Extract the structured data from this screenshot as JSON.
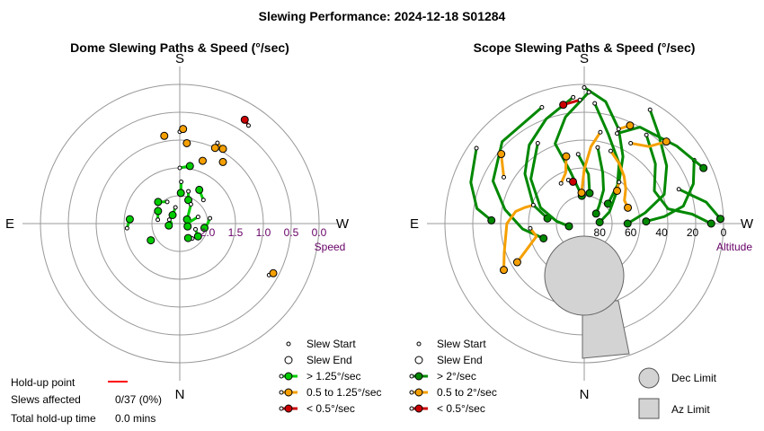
{
  "title": "Slewing Performance: 2024-12-18 S01284",
  "chart_data": [
    {
      "type": "polar",
      "title": "Dome Slewing Paths & Speed (°/sec)",
      "compass": {
        "top": "S",
        "bottom": "N",
        "left": "E",
        "right": "W"
      },
      "radial_label": "Speed",
      "radial_ticks": [
        "2.0",
        "1.5",
        "1.0",
        "0.5",
        "0.0"
      ],
      "radial_tick_values": [
        2.0,
        1.5,
        1.0,
        0.5,
        0.0
      ],
      "radial_range": [
        2.5,
        0.0
      ],
      "series": [
        {
          "name": "> 1.25°/sec",
          "color": "#00cc00",
          "paths": [
            [
              [
                180,
                1.5
              ],
              [
                170,
                1.45
              ]
            ],
            [
              [
                178,
                1.75
              ],
              [
                178,
                1.95
              ]
            ],
            [
              [
                165,
                1.9
              ],
              [
                160,
                2.05
              ]
            ],
            [
              [
                210,
                2.05
              ],
              [
                225,
                1.95
              ]
            ],
            [
              [
                195,
                2.2
              ],
              [
                220,
                2.3
              ]
            ],
            [
              [
                150,
                2.1
              ],
              [
                140,
                2.25
              ],
              [
                120,
                2.35
              ]
            ],
            [
              [
                110,
                2.15
              ],
              [
                95,
                2.35
              ],
              [
                80,
                2.4
              ],
              [
                70,
                2.35
              ]
            ],
            [
              [
                100,
                1.95
              ],
              [
                90,
                2.0
              ],
              [
                80,
                2.05
              ]
            ],
            [
              [
                260,
                2.1
              ],
              [
                240,
                2.05
              ]
            ],
            [
              [
                275,
                1.55
              ],
              [
                265,
                1.6
              ]
            ],
            [
              [
                300,
                1.9
              ]
            ],
            [
              [
                70,
                2.2
              ],
              [
                55,
                2.1
              ]
            ],
            [
              [
                40,
                2.15
              ],
              [
                30,
                2.2
              ]
            ],
            [
              [
                250,
                2.3
              ],
              [
                265,
                2.35
              ],
              [
                280,
                2.3
              ]
            ],
            [
              [
                135,
                1.9
              ],
              [
                150,
                1.8
              ]
            ]
          ]
        },
        {
          "name": "0.5 to 1.25°/sec",
          "color": "#f5a000",
          "paths": [
            [
              [
                180,
                0.85
              ],
              [
                178,
                0.8
              ]
            ],
            [
              [
                175,
                1.05
              ]
            ],
            [
              [
                160,
                1.3
              ]
            ],
            [
              [
                155,
                0.9
              ],
              [
                150,
                0.95
              ]
            ],
            [
              [
                145,
                1.15
              ]
            ],
            [
              [
                155,
                1.0
              ]
            ],
            [
              [
                60,
                0.65
              ],
              [
                62,
                0.6
              ]
            ],
            [
              [
                190,
                0.9
              ]
            ]
          ]
        },
        {
          "name": "< 0.5°/sec",
          "color": "#cc0000",
          "paths": [
            [
              [
                145,
                0.35
              ],
              [
                148,
                0.3
              ]
            ]
          ]
        }
      ]
    },
    {
      "type": "polar",
      "title": "Scope Slewing Paths & Speed (°/sec)",
      "compass": {
        "top": "S",
        "bottom": "N",
        "left": "E",
        "right": "W"
      },
      "radial_label": "Altitude",
      "radial_ticks": [
        "80",
        "60",
        "40",
        "20",
        "0"
      ],
      "radial_tick_values": [
        80,
        60,
        40,
        20,
        0
      ],
      "radial_range": [
        90,
        0
      ],
      "series": [
        {
          "name": "> 2°/sec",
          "color": "#008800",
          "paths": [
            [
              [
                180,
                2
              ],
              [
                170,
                10
              ],
              [
                160,
                25
              ],
              [
                150,
                40
              ],
              [
                140,
                55
              ],
              [
                130,
                70
              ]
            ],
            [
              [
                178,
                5
              ],
              [
                190,
                20
              ],
              [
                200,
                35
              ],
              [
                195,
                55
              ],
              [
                185,
                72
              ]
            ],
            [
              [
                175,
                12
              ],
              [
                165,
                30
              ],
              [
                150,
                45
              ],
              [
                135,
                60
              ],
              [
                115,
                72
              ],
              [
                95,
                80
              ]
            ],
            [
              [
                185,
                8
              ],
              [
                200,
                18
              ],
              [
                215,
                28
              ],
              [
                230,
                40
              ],
              [
                250,
                55
              ],
              [
                262,
                66
              ]
            ],
            [
              [
                200,
                10
              ],
              [
                225,
                15
              ],
              [
                245,
                25
              ],
              [
                260,
                38
              ],
              [
                275,
                50
              ],
              [
                290,
                62
              ]
            ],
            [
              [
                150,
                5
              ],
              [
                140,
                15
              ],
              [
                125,
                25
              ],
              [
                110,
                35
              ],
              [
                100,
                50
              ],
              [
                90,
                62
              ]
            ],
            [
              [
                145,
                20
              ],
              [
                130,
                30
              ],
              [
                115,
                40
              ],
              [
                100,
                35
              ],
              [
                95,
                20
              ],
              [
                90,
                8
              ]
            ],
            [
              [
                120,
                8
              ],
              [
                110,
                15
              ],
              [
                100,
                25
              ],
              [
                95,
                38
              ],
              [
                92,
                50
              ]
            ],
            [
              [
                170,
                40
              ],
              [
                160,
                55
              ],
              [
                150,
                65
              ],
              [
                140,
                75
              ],
              [
                130,
                80
              ]
            ],
            [
              [
                210,
                30
              ],
              [
                230,
                45
              ],
              [
                250,
                60
              ],
              [
                265,
                72
              ],
              [
                280,
                80
              ]
            ],
            [
              [
                235,
                5
              ],
              [
                250,
                12
              ],
              [
                262,
                20
              ],
              [
                268,
                30
              ]
            ],
            [
              [
                110,
                25
              ],
              [
                100,
                10
              ],
              [
                92,
                2
              ]
            ],
            [
              [
                160,
                28
              ],
              [
                150,
                18
              ],
              [
                130,
                12
              ],
              [
                115,
                5
              ]
            ],
            [
              [
                185,
                45
              ],
              [
                175,
                58
              ],
              [
                170,
                70
              ]
            ]
          ]
        },
        {
          "name": "0.5 to 2°/sec",
          "color": "#f5a000",
          "paths": [
            [
              [
                160,
                40
              ],
              [
                150,
                45
              ],
              [
                140,
                50
              ],
              [
                130,
                55
              ],
              [
                120,
                60
              ],
              [
                110,
                60
              ]
            ],
            [
              [
                150,
                30
              ],
              [
                140,
                25
              ],
              [
                135,
                15
              ]
            ],
            [
              [
                160,
                25
              ],
              [
                155,
                20
              ]
            ],
            [
              [
                170,
                30
              ],
              [
                175,
                40
              ],
              [
                180,
                55
              ],
              [
                185,
                70
              ]
            ],
            [
              [
                250,
                55
              ],
              [
                255,
                50
              ],
              [
                260,
                45
              ],
              [
                270,
                40
              ],
              [
                290,
                35
              ],
              [
                300,
                30
              ]
            ],
            [
              [
                210,
                60
              ],
              [
                200,
                55
              ],
              [
                195,
                45
              ]
            ],
            [
              [
                240,
                30
              ],
              [
                230,
                20
              ]
            ],
            [
              [
                140,
                55
              ],
              [
                135,
                60
              ]
            ],
            [
              [
                275,
                55
              ],
              [
                285,
                58
              ],
              [
                300,
                40
              ]
            ]
          ]
        },
        {
          "name": "< 0.5°/sec",
          "color": "#cc0000",
          "paths": [
            [
              [
                182,
                10
              ],
              [
                190,
                12
              ]
            ],
            [
              [
                200,
                60
              ],
              [
                195,
                62
              ]
            ]
          ]
        }
      ],
      "limits": [
        {
          "name": "Dec Limit",
          "shape": "circle",
          "color": "#d3d3d3"
        },
        {
          "name": "Az Limit",
          "shape": "square",
          "color": "#d3d3d3"
        }
      ]
    }
  ],
  "legend_dome": [
    {
      "label": "Slew Start",
      "kind": "start"
    },
    {
      "label": "Slew End",
      "kind": "end"
    },
    {
      "label": "> 1.25°/sec",
      "kind": "line",
      "color": "#00cc00"
    },
    {
      "label": "0.5 to 1.25°/sec",
      "kind": "line",
      "color": "#f5a000"
    },
    {
      "label": "< 0.5°/sec",
      "kind": "line",
      "color": "#cc0000"
    }
  ],
  "legend_scope": [
    {
      "label": "Slew Start",
      "kind": "start"
    },
    {
      "label": "Slew End",
      "kind": "end"
    },
    {
      "label": "> 2°/sec",
      "kind": "line",
      "color": "#008800"
    },
    {
      "label": "0.5 to 2°/sec",
      "kind": "line",
      "color": "#f5a000"
    },
    {
      "label": "< 0.5°/sec",
      "kind": "line",
      "color": "#cc0000"
    }
  ],
  "holdup": {
    "point_label": "Hold-up point",
    "point_color": "#ff0000",
    "slews_label": "Slews affected",
    "slews_value": "0/37 (0%)",
    "total_label": "Total hold-up time",
    "total_value": "0.0 mins"
  }
}
